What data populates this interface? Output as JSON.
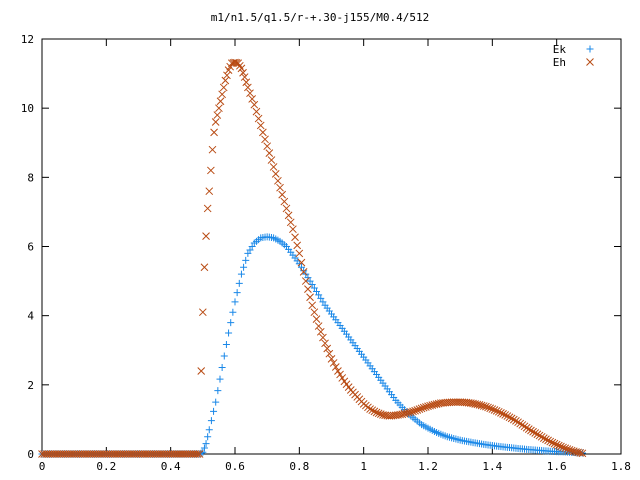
{
  "chart_data": {
    "type": "scatter",
    "title": "m1/n1.5/q1.5/r-+.30-j155/M0.4/512",
    "xlabel": "",
    "ylabel": "",
    "xlim": [
      0,
      1.8
    ],
    "ylim": [
      0,
      12
    ],
    "x_ticks": [
      0,
      0.2,
      0.4,
      0.6,
      0.8,
      1,
      1.2,
      1.4,
      1.6,
      1.8
    ],
    "x_tick_labels": [
      "0",
      "0.2",
      "0.4",
      "0.6",
      "0.8",
      "1",
      "1.2",
      "1.4",
      "1.6",
      "1.8"
    ],
    "y_ticks": [
      0,
      2,
      4,
      6,
      8,
      10,
      12
    ],
    "y_tick_labels": [
      "0",
      "2",
      "4",
      "6",
      "8",
      "10",
      "12"
    ],
    "grid": false,
    "legend_position": "top-right",
    "series": [
      {
        "name": "Ek",
        "marker": "plus",
        "color": "#1a88e8",
        "points": [
          [
            0,
            0
          ],
          [
            0.1,
            0
          ],
          [
            0.2,
            0
          ],
          [
            0.3,
            0
          ],
          [
            0.4,
            0
          ],
          [
            0.49,
            0
          ],
          [
            0.5,
            0.05
          ],
          [
            0.51,
            0.3
          ],
          [
            0.52,
            0.7
          ],
          [
            0.54,
            1.5
          ],
          [
            0.56,
            2.5
          ],
          [
            0.58,
            3.5
          ],
          [
            0.6,
            4.4
          ],
          [
            0.62,
            5.2
          ],
          [
            0.64,
            5.8
          ],
          [
            0.66,
            6.1
          ],
          [
            0.68,
            6.25
          ],
          [
            0.7,
            6.28
          ],
          [
            0.72,
            6.25
          ],
          [
            0.74,
            6.15
          ],
          [
            0.76,
            6.0
          ],
          [
            0.78,
            5.75
          ],
          [
            0.8,
            5.5
          ],
          [
            0.82,
            5.2
          ],
          [
            0.84,
            4.9
          ],
          [
            0.86,
            4.6
          ],
          [
            0.88,
            4.3
          ],
          [
            0.9,
            4.05
          ],
          [
            0.92,
            3.8
          ],
          [
            0.94,
            3.55
          ],
          [
            0.96,
            3.3
          ],
          [
            0.98,
            3.05
          ],
          [
            1.0,
            2.8
          ],
          [
            1.02,
            2.55
          ],
          [
            1.04,
            2.3
          ],
          [
            1.06,
            2.05
          ],
          [
            1.08,
            1.8
          ],
          [
            1.1,
            1.55
          ],
          [
            1.12,
            1.35
          ],
          [
            1.14,
            1.15
          ],
          [
            1.16,
            1.0
          ],
          [
            1.18,
            0.85
          ],
          [
            1.2,
            0.75
          ],
          [
            1.22,
            0.65
          ],
          [
            1.24,
            0.57
          ],
          [
            1.26,
            0.5
          ],
          [
            1.28,
            0.45
          ],
          [
            1.3,
            0.4
          ],
          [
            1.34,
            0.33
          ],
          [
            1.38,
            0.27
          ],
          [
            1.42,
            0.22
          ],
          [
            1.46,
            0.18
          ],
          [
            1.5,
            0.14
          ],
          [
            1.54,
            0.11
          ],
          [
            1.58,
            0.08
          ],
          [
            1.62,
            0.06
          ],
          [
            1.66,
            0.04
          ],
          [
            1.68,
            0.03
          ]
        ]
      },
      {
        "name": "Eh",
        "marker": "cross",
        "color": "#b84a12",
        "points": [
          [
            0,
            0
          ],
          [
            0.1,
            0
          ],
          [
            0.2,
            0
          ],
          [
            0.3,
            0
          ],
          [
            0.4,
            0
          ],
          [
            0.49,
            0
          ],
          [
            0.495,
            2.4
          ],
          [
            0.5,
            4.1
          ],
          [
            0.505,
            5.4
          ],
          [
            0.51,
            6.3
          ],
          [
            0.515,
            7.1
          ],
          [
            0.52,
            7.6
          ],
          [
            0.525,
            8.2
          ],
          [
            0.53,
            8.8
          ],
          [
            0.535,
            9.3
          ],
          [
            0.54,
            9.6
          ],
          [
            0.55,
            10.0
          ],
          [
            0.56,
            10.4
          ],
          [
            0.57,
            10.8
          ],
          [
            0.58,
            11.1
          ],
          [
            0.59,
            11.3
          ],
          [
            0.6,
            11.32
          ],
          [
            0.61,
            11.3
          ],
          [
            0.62,
            11.15
          ],
          [
            0.63,
            10.9
          ],
          [
            0.64,
            10.6
          ],
          [
            0.66,
            10.1
          ],
          [
            0.68,
            9.5
          ],
          [
            0.7,
            8.9
          ],
          [
            0.72,
            8.3
          ],
          [
            0.74,
            7.7
          ],
          [
            0.76,
            7.1
          ],
          [
            0.78,
            6.5
          ],
          [
            0.8,
            5.8
          ],
          [
            0.82,
            5.0
          ],
          [
            0.84,
            4.3
          ],
          [
            0.86,
            3.7
          ],
          [
            0.88,
            3.2
          ],
          [
            0.9,
            2.75
          ],
          [
            0.92,
            2.4
          ],
          [
            0.94,
            2.1
          ],
          [
            0.96,
            1.85
          ],
          [
            0.98,
            1.65
          ],
          [
            1.0,
            1.45
          ],
          [
            1.02,
            1.3
          ],
          [
            1.04,
            1.2
          ],
          [
            1.06,
            1.13
          ],
          [
            1.08,
            1.1
          ],
          [
            1.1,
            1.12
          ],
          [
            1.12,
            1.15
          ],
          [
            1.14,
            1.2
          ],
          [
            1.16,
            1.25
          ],
          [
            1.18,
            1.32
          ],
          [
            1.2,
            1.38
          ],
          [
            1.22,
            1.43
          ],
          [
            1.24,
            1.47
          ],
          [
            1.26,
            1.49
          ],
          [
            1.28,
            1.5
          ],
          [
            1.3,
            1.5
          ],
          [
            1.32,
            1.49
          ],
          [
            1.34,
            1.46
          ],
          [
            1.36,
            1.42
          ],
          [
            1.38,
            1.37
          ],
          [
            1.4,
            1.3
          ],
          [
            1.42,
            1.22
          ],
          [
            1.44,
            1.13
          ],
          [
            1.46,
            1.03
          ],
          [
            1.48,
            0.92
          ],
          [
            1.5,
            0.8
          ],
          [
            1.52,
            0.68
          ],
          [
            1.54,
            0.57
          ],
          [
            1.56,
            0.46
          ],
          [
            1.58,
            0.36
          ],
          [
            1.6,
            0.27
          ],
          [
            1.62,
            0.19
          ],
          [
            1.64,
            0.12
          ],
          [
            1.66,
            0.06
          ],
          [
            1.68,
            0.02
          ]
        ]
      }
    ]
  }
}
